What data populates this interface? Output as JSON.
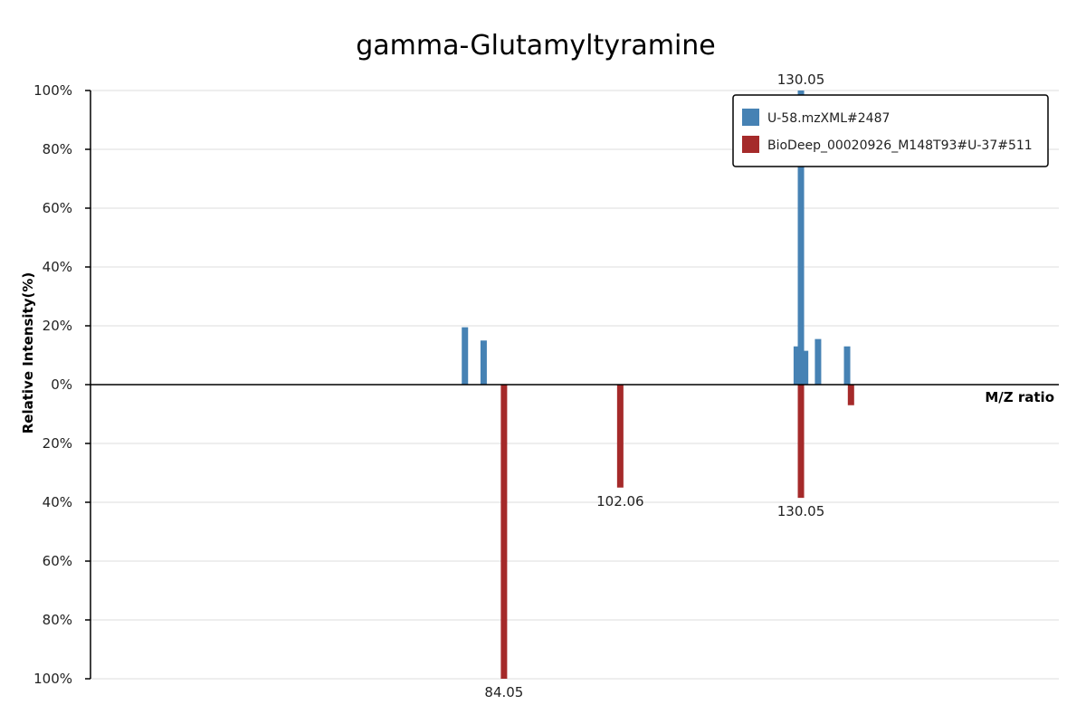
{
  "chart_data": {
    "type": "bar",
    "title": "gamma-Glutamyltyramine",
    "xlabel": "M/Z ratio",
    "ylabel": "Relative Intensity(%)",
    "ylim": [
      -100,
      100
    ],
    "xlim": [
      20,
      170
    ],
    "grid": true,
    "legend_position": "top-right",
    "y_ticks": [
      {
        "value": 100,
        "label": "100%"
      },
      {
        "value": 80,
        "label": "80%"
      },
      {
        "value": 60,
        "label": "60%"
      },
      {
        "value": 40,
        "label": "40%"
      },
      {
        "value": 20,
        "label": "20%"
      },
      {
        "value": 0,
        "label": "0%"
      },
      {
        "value": -20,
        "label": "20%"
      },
      {
        "value": -40,
        "label": "40%"
      },
      {
        "value": -60,
        "label": "60%"
      },
      {
        "value": -80,
        "label": "80%"
      },
      {
        "value": -100,
        "label": "100%"
      }
    ],
    "series": [
      {
        "name": "U-58.mzXML#2487",
        "color": "#4682b4",
        "direction": "up",
        "points": [
          {
            "mz": 78.0,
            "intensity": 19.5
          },
          {
            "mz": 80.9,
            "intensity": 15.0
          },
          {
            "mz": 129.4,
            "intensity": 13.0
          },
          {
            "mz": 130.05,
            "intensity": 100,
            "label": "130.05"
          },
          {
            "mz": 130.7,
            "intensity": 11.5
          },
          {
            "mz": 132.7,
            "intensity": 15.5
          },
          {
            "mz": 137.2,
            "intensity": 13.0
          }
        ]
      },
      {
        "name": "BioDeep_00020926_M148T93#U-37#511",
        "color": "#a52a2a",
        "direction": "down",
        "points": [
          {
            "mz": 84.05,
            "intensity": 100,
            "label": "84.05"
          },
          {
            "mz": 102.06,
            "intensity": 35,
            "label": "102.06"
          },
          {
            "mz": 130.05,
            "intensity": 38.5,
            "label": "130.05"
          },
          {
            "mz": 137.8,
            "intensity": 7
          }
        ]
      }
    ]
  }
}
